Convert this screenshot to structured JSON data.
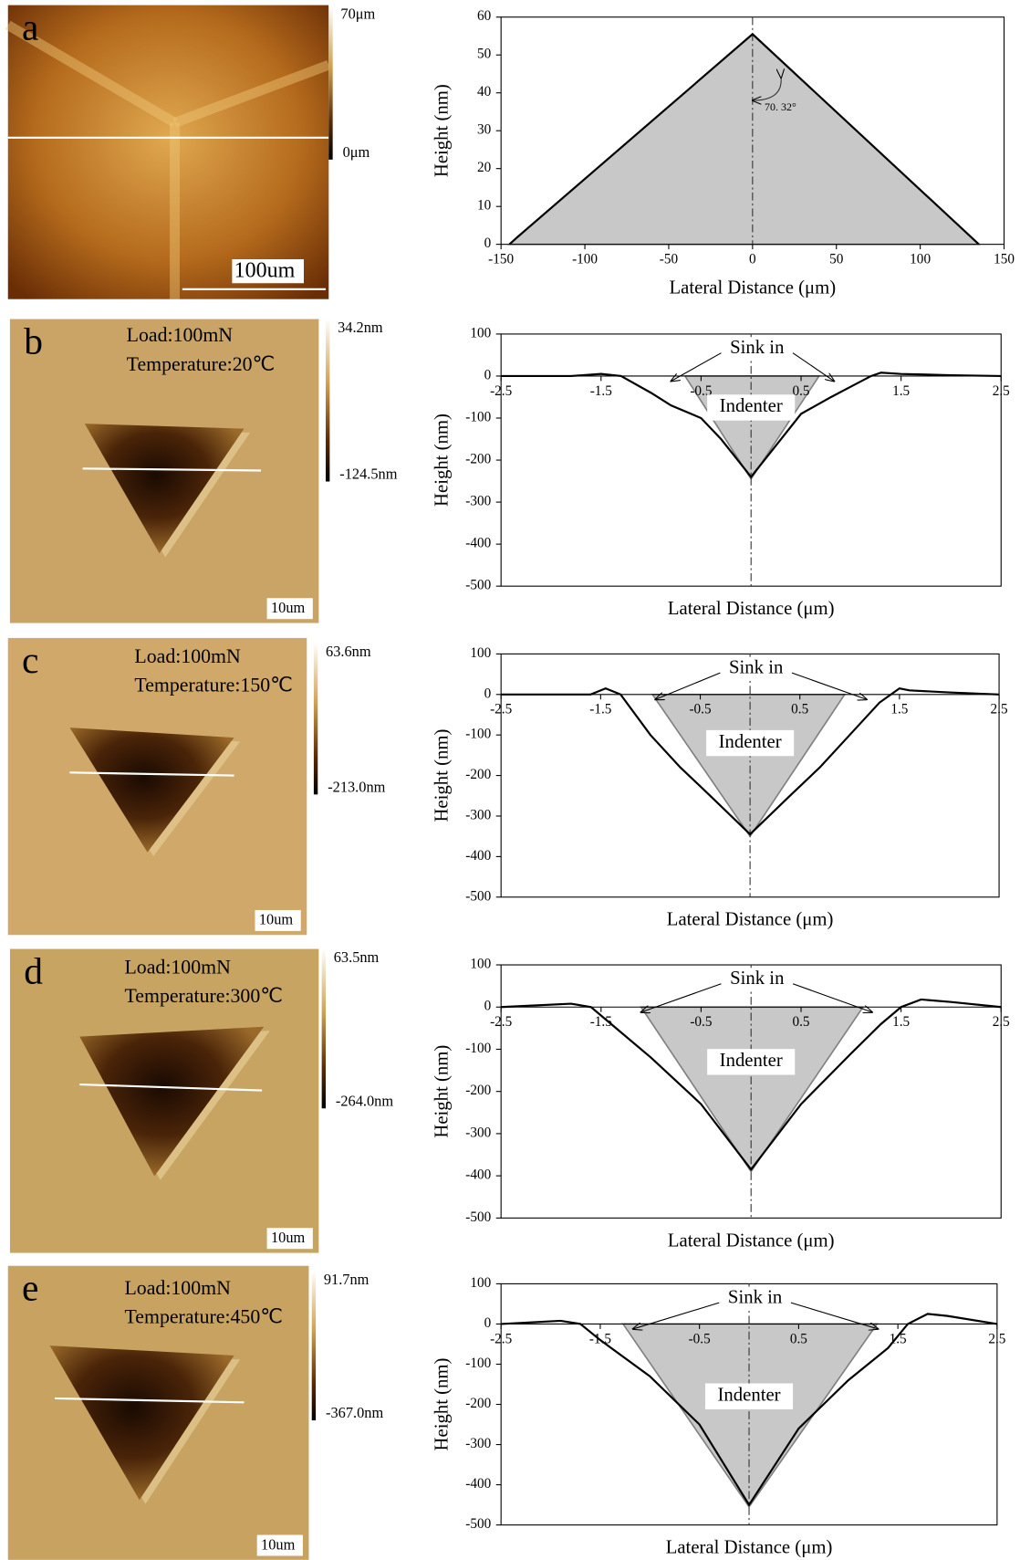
{
  "chart_data": [
    {
      "type": "line",
      "ylabel": "Height (nm)",
      "xlabel": "Lateral Distance (μm)",
      "xlim": [
        -150,
        150
      ],
      "ylim": [
        0,
        60
      ],
      "xticks": [
        -150,
        -100,
        -50,
        0,
        50,
        100,
        150
      ],
      "yticks": [
        0,
        10,
        20,
        30,
        40,
        50,
        60
      ],
      "x": [
        -145,
        -140,
        0,
        135
      ],
      "values": [
        0,
        2,
        55.5,
        0
      ],
      "indenter": {
        "x": [
          -145,
          0,
          135
        ],
        "y": [
          0,
          55.5,
          0
        ]
      },
      "annotations": [
        "70. 32°"
      ]
    },
    {
      "type": "line",
      "ylabel": "Height (nm)",
      "xlabel": "Lateral Distance (μm)",
      "xlim": [
        -2.5,
        2.5
      ],
      "ylim": [
        -500,
        100
      ],
      "xticks": [
        -2.5,
        -1.5,
        -0.5,
        0.5,
        1.5,
        2.5
      ],
      "yticks": [
        -500,
        -400,
        -300,
        -200,
        -100,
        0,
        100
      ],
      "x": [
        -2.5,
        -1.8,
        -1.5,
        -1.3,
        -1.0,
        -0.8,
        -0.5,
        -0.3,
        0,
        0.3,
        0.5,
        0.8,
        1.0,
        1.2,
        1.3,
        1.5,
        2.0,
        2.5
      ],
      "values": [
        0,
        0,
        5,
        0,
        -40,
        -70,
        -100,
        -150,
        -240,
        -150,
        -90,
        -50,
        -25,
        0,
        8,
        5,
        2,
        0
      ],
      "indenter": {
        "x": [
          -0.66,
          0,
          0.68
        ],
        "y": [
          0,
          -245,
          0
        ]
      },
      "annotations": [
        "Sink in",
        "Indenter"
      ]
    },
    {
      "type": "line",
      "ylabel": "Height (nm)",
      "xlabel": "Lateral Distance (μm)",
      "xlim": [
        -2.5,
        2.5
      ],
      "ylim": [
        -500,
        100
      ],
      "xticks": [
        -2.5,
        -1.5,
        -0.5,
        0.5,
        1.5,
        2.5
      ],
      "yticks": [
        -500,
        -400,
        -300,
        -200,
        -100,
        0,
        100
      ],
      "x": [
        -2.5,
        -1.6,
        -1.45,
        -1.3,
        -1.0,
        -0.7,
        -0.4,
        0,
        0.4,
        0.7,
        1.0,
        1.3,
        1.5,
        1.6,
        2.0,
        2.5
      ],
      "values": [
        0,
        0,
        15,
        0,
        -100,
        -180,
        -250,
        -345,
        -250,
        -180,
        -100,
        -20,
        15,
        10,
        5,
        0
      ],
      "indenter": {
        "x": [
          -0.98,
          0,
          0.95
        ],
        "y": [
          0,
          -350,
          0
        ]
      },
      "annotations": [
        "Sink in",
        "Indenter"
      ]
    },
    {
      "type": "line",
      "ylabel": "Height (nm)",
      "xlabel": "Lateral Distance (μm)",
      "xlim": [
        -2.5,
        2.5
      ],
      "ylim": [
        -500,
        100
      ],
      "xticks": [
        -2.5,
        -1.5,
        -0.5,
        0.5,
        1.5,
        2.5
      ],
      "yticks": [
        -500,
        -400,
        -300,
        -200,
        -100,
        0,
        100
      ],
      "x": [
        -2.5,
        -1.8,
        -1.6,
        -1.4,
        -1.0,
        -0.5,
        0,
        0.5,
        1.0,
        1.3,
        1.5,
        1.7,
        2.0,
        2.5
      ],
      "values": [
        0,
        8,
        0,
        -40,
        -120,
        -230,
        -385,
        -230,
        -110,
        -40,
        0,
        18,
        12,
        0
      ],
      "indenter": {
        "x": [
          -1.1,
          0,
          1.12
        ],
        "y": [
          0,
          -390,
          0
        ]
      },
      "annotations": [
        "Sink in",
        "Indenter"
      ]
    },
    {
      "type": "line",
      "ylabel": "Height (nm)",
      "xlabel": "Lateral Distance (μm)",
      "xlim": [
        -2.5,
        2.5
      ],
      "ylim": [
        -500,
        100
      ],
      "xticks": [
        -2.5,
        -1.5,
        -0.5,
        0.5,
        1.5,
        2.5
      ],
      "yticks": [
        -500,
        -400,
        -300,
        -200,
        -100,
        0,
        100
      ],
      "x": [
        -2.5,
        -1.9,
        -1.7,
        -1.5,
        -1.0,
        -0.5,
        0,
        0.5,
        1.0,
        1.4,
        1.6,
        1.8,
        2.0,
        2.5
      ],
      "values": [
        0,
        8,
        0,
        -40,
        -130,
        -250,
        -450,
        -260,
        -140,
        -60,
        0,
        25,
        20,
        0
      ],
      "indenter": {
        "x": [
          -1.27,
          0,
          1.29
        ],
        "y": [
          0,
          -455,
          0
        ]
      },
      "annotations": [
        "Sink in",
        "Indenter"
      ]
    }
  ],
  "images": [
    {
      "letter": "a",
      "scale_max": "70μm",
      "scale_min": "0μm",
      "scale_bar": "100um"
    },
    {
      "letter": "b",
      "load": "Load:100mN",
      "temperature": "Temperature:20℃",
      "scale_max": "34.2nm",
      "scale_min": "-124.5nm",
      "scale_bar": "10um"
    },
    {
      "letter": "c",
      "load": "Load:100mN",
      "temperature": "Temperature:150℃",
      "scale_max": "63.6nm",
      "scale_min": "-213.0nm",
      "scale_bar": "10um"
    },
    {
      "letter": "d",
      "load": "Load:100mN",
      "temperature": "Temperature:300℃",
      "scale_max": "63.5nm",
      "scale_min": "-264.0nm",
      "scale_bar": "10um"
    },
    {
      "letter": "e",
      "load": "Load:100mN",
      "temperature": "Temperature:450℃",
      "scale_max": "91.7nm",
      "scale_min": "-367.0nm",
      "scale_bar": "10um"
    }
  ]
}
